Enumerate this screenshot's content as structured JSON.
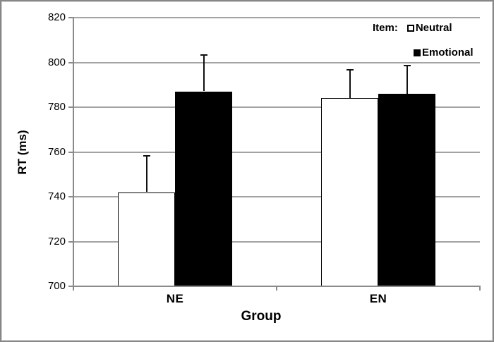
{
  "chart_data": {
    "type": "bar",
    "title": "",
    "xlabel": "Group",
    "ylabel": "RT (ms)",
    "ylim": [
      700,
      820
    ],
    "yticks": [
      700,
      720,
      740,
      760,
      780,
      800,
      820
    ],
    "categories": [
      "NE",
      "EN"
    ],
    "legend_title": "Item:",
    "legend_position": "top-right",
    "grid": true,
    "series": [
      {
        "name": "Neutral",
        "values": [
          742,
          784
        ],
        "errors_plus": [
          16.5,
          13
        ],
        "fill": "#ffffff",
        "border": "#000000"
      },
      {
        "name": "Emotional",
        "values": [
          787,
          786
        ],
        "errors_plus": [
          16.5,
          13
        ],
        "fill": "#000000",
        "border": "#000000"
      }
    ]
  },
  "colors": {
    "background": "#ffffff",
    "gridline": "#a3a3a3",
    "axis": "#8a8a8a",
    "error_bar": "#111111",
    "text": "#000000",
    "frame": "#878787"
  }
}
